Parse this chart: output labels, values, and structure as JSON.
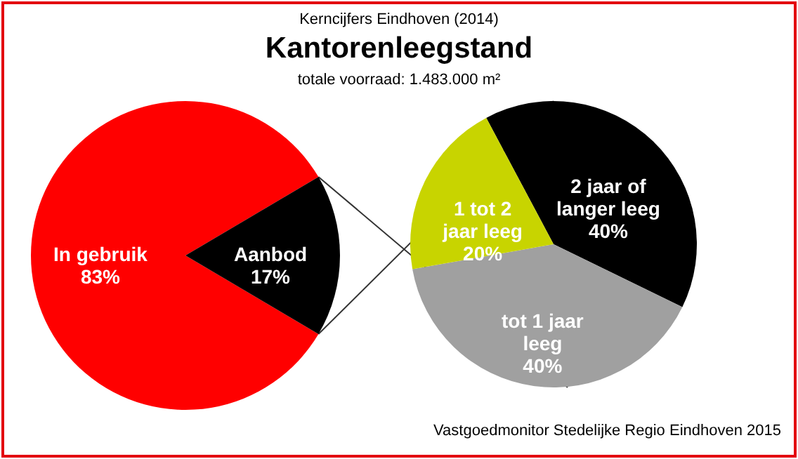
{
  "chart_data": [
    {
      "type": "pie",
      "title": "Kantorenleegstand",
      "subtitle": "totale voorraad: 1.483.000 m²",
      "annotations": [
        "Kerncijfers Eindhoven (2014)"
      ],
      "categories": [
        "In gebruik",
        "Aanbod"
      ],
      "values": [
        83,
        17
      ],
      "colors": [
        "#ff0000",
        "#000000"
      ],
      "value_labels": [
        "83%",
        "17%"
      ]
    },
    {
      "type": "pie",
      "annotations": [
        "Vastgoedmonitor Stedelijke Regio Eindhoven 2015"
      ],
      "categories": [
        "2 jaar of langer leeg",
        "tot 1 jaar leeg",
        "1 tot 2 jaar leeg"
      ],
      "values": [
        40,
        40,
        20
      ],
      "colors": [
        "#000000",
        "#a0a0a0",
        "#c8d400"
      ],
      "value_labels": [
        "40%",
        "40%",
        "20%"
      ]
    }
  ]
}
